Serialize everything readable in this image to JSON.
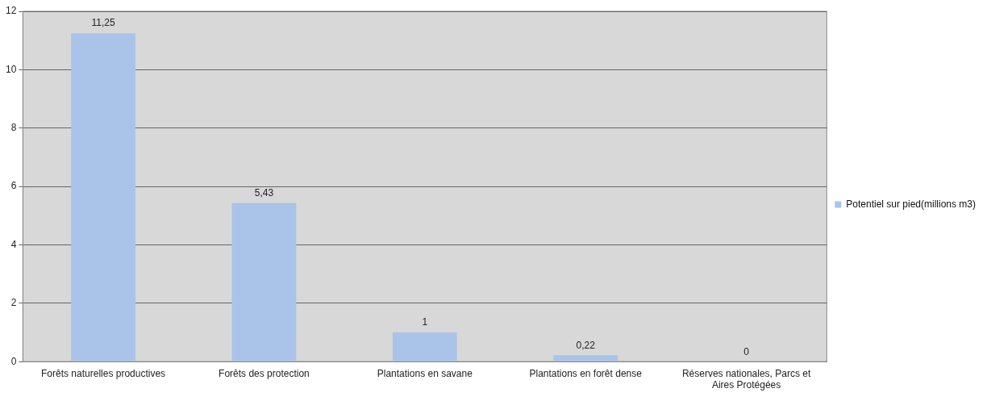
{
  "chart_data": {
    "type": "bar",
    "categories": [
      "Forêts naturelles productives",
      "Forêts des protection",
      "Plantations en savane",
      "Plantations en forêt dense",
      "Réserves nationales, Parcs et Aires Protégées"
    ],
    "series": [
      {
        "name": "Potentiel sur pied(millions m3)",
        "color": "#a9c4e8",
        "values": [
          11.25,
          5.43,
          1,
          0.22,
          0
        ],
        "value_labels": [
          "11,25",
          "5,43",
          "1",
          "0,22",
          "0"
        ]
      }
    ],
    "ylim": [
      0,
      12
    ],
    "yticks": [
      0,
      2,
      4,
      6,
      8,
      10,
      12
    ],
    "grid": "y",
    "legend": "right"
  }
}
